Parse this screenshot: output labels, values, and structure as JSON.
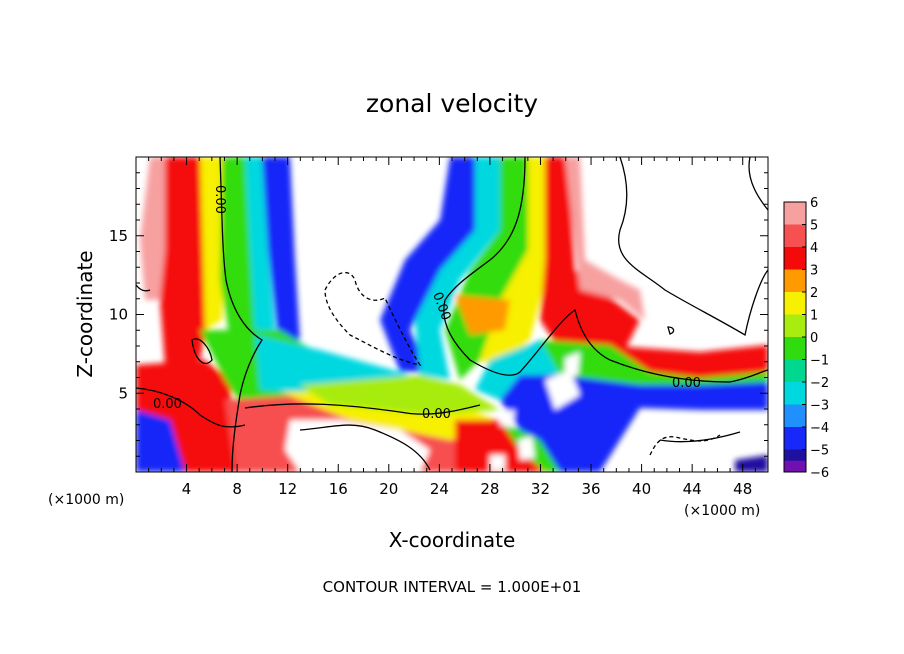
{
  "chart_data": {
    "type": "heatmap",
    "title": "zonal velocity",
    "xlabel": "X-coordinate",
    "ylabel": "Z-coordinate",
    "x_unit_label": "(×1000 m)",
    "x_unit_label_right": "(×1000 m)",
    "xlim": [
      0,
      50
    ],
    "ylim": [
      0,
      20
    ],
    "x_ticks": [
      4,
      8,
      12,
      16,
      20,
      24,
      28,
      32,
      36,
      40,
      44,
      48
    ],
    "y_ticks": [
      5,
      10,
      15
    ],
    "colorbar": {
      "min": -6,
      "max": 6,
      "tick_labels": [
        "6",
        "5",
        "4",
        "3",
        "2",
        "1",
        "0",
        "−1",
        "−2",
        "−3",
        "−4",
        "−5",
        "−6"
      ],
      "levels": [
        {
          "value": 5.5,
          "color": "#f7a0a0"
        },
        {
          "value": 4.5,
          "color": "#f75050"
        },
        {
          "value": 3.5,
          "color": "#f50a0a"
        },
        {
          "value": 2.5,
          "color": "#ff9a00"
        },
        {
          "value": 1.5,
          "color": "#f7f000"
        },
        {
          "value": 0.5,
          "color": "#a8ec10"
        },
        {
          "value": -0.5,
          "color": "#30dc10"
        },
        {
          "value": -1.5,
          "color": "#00d890"
        },
        {
          "value": -2.5,
          "color": "#00d8e0"
        },
        {
          "value": -3.5,
          "color": "#2090ff"
        },
        {
          "value": -4.5,
          "color": "#1828f8"
        },
        {
          "value": -5.5,
          "color": "#2010a0"
        },
        {
          "value": -6,
          "color": "#7010b0"
        }
      ]
    },
    "contour_labels": [
      "0.00",
      "0.00",
      "0.00",
      "0.00",
      "0.00"
    ],
    "footer": "CONTOUR INTERVAL = 1.000E+01"
  }
}
